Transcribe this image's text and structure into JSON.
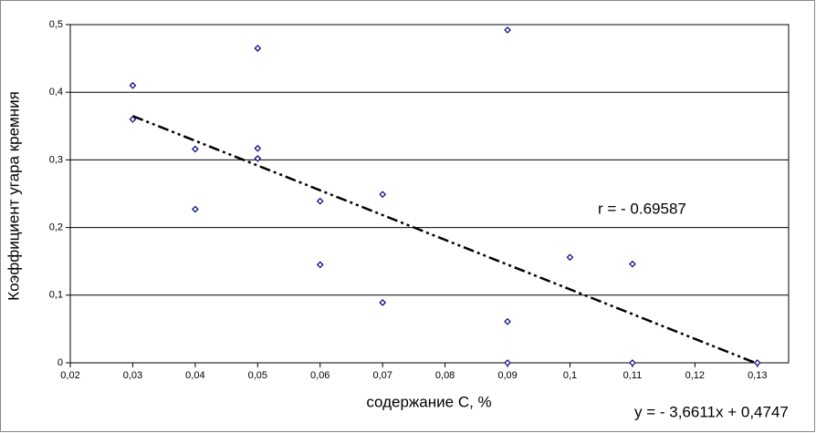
{
  "chart_data": {
    "type": "scatter",
    "xlabel": "содержание С, %",
    "ylabel": "Коэффициент угара кремния",
    "xlim": [
      0.02,
      0.135
    ],
    "ylim": [
      0,
      0.5
    ],
    "xticks": [
      {
        "value": 0.02,
        "label": "0,02"
      },
      {
        "value": 0.03,
        "label": "0,03"
      },
      {
        "value": 0.04,
        "label": "0,04"
      },
      {
        "value": 0.05,
        "label": "0,05"
      },
      {
        "value": 0.06,
        "label": "0,06"
      },
      {
        "value": 0.07,
        "label": "0,07"
      },
      {
        "value": 0.08,
        "label": "0,08"
      },
      {
        "value": 0.09,
        "label": "0,09"
      },
      {
        "value": 0.1,
        "label": "0,1"
      },
      {
        "value": 0.11,
        "label": "0,11"
      },
      {
        "value": 0.12,
        "label": "0,12"
      },
      {
        "value": 0.13,
        "label": "0,13"
      }
    ],
    "yticks": [
      0,
      {
        "value": 0.1,
        "label": "0,1"
      },
      {
        "value": 0.2,
        "label": "0,2"
      },
      {
        "value": 0.3,
        "label": "0,3"
      },
      {
        "value": 0.4,
        "label": "0,4"
      },
      {
        "value": 0.5,
        "label": "0,5"
      }
    ],
    "grid": true,
    "series": [
      {
        "color": "#000080",
        "x": [
          0.03,
          0.03,
          0.04,
          0.04,
          0.05,
          0.05,
          0.05,
          0.06,
          0.06,
          0.07,
          0.07,
          0.09,
          0.09,
          0.09,
          0.1,
          0.11,
          0.11,
          0.13
        ],
        "values": [
          0.41,
          0.36,
          0.316,
          0.227,
          0.465,
          0.317,
          0.302,
          0.239,
          0.145,
          0.249,
          0.089,
          0.492,
          0.061,
          0,
          0.156,
          0.146,
          0,
          0
        ]
      }
    ],
    "trendline": {
      "slope": -3.6611,
      "intercept": 0.4747,
      "x_range": [
        0.03,
        0.13
      ],
      "label": "y = - 3,6611x + 0,4747"
    },
    "annotations": [
      {
        "text": "r = - 0.69587"
      }
    ]
  }
}
